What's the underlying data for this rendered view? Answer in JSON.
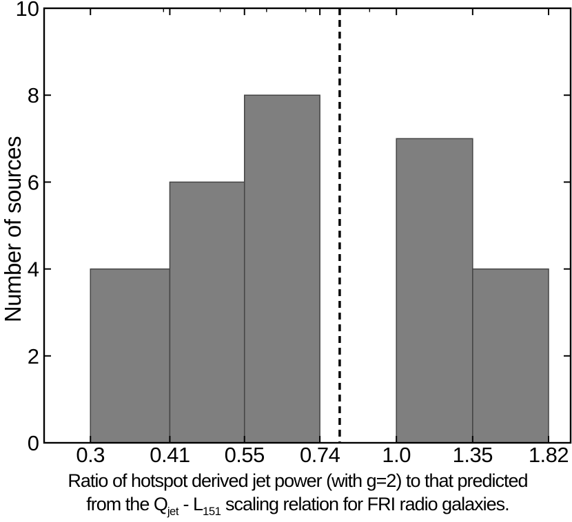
{
  "figure": {
    "background": "#ffffff",
    "caption_line1": "Ratio of hotspot derived jet power (with g=2) to that predicted",
    "caption_line2": [
      {
        "text": "from the Q"
      },
      {
        "text": "jet",
        "sub": true
      },
      {
        "text": " - L"
      },
      {
        "text": "151",
        "sub": true
      },
      {
        "text": " scaling relation for FRI radio galaxies."
      }
    ]
  },
  "chart_data": {
    "type": "bar",
    "subtype": "histogram",
    "title": "",
    "xlabel": "Ratio of hotspot derived jet power (with g=2) to that predicted from the Q_jet - L_151 scaling relation for FRI radio galaxies.",
    "ylabel": "Number of sources",
    "x_scale": "log",
    "y_scale": "linear",
    "xlim": [
      0.25,
      1.985
    ],
    "ylim": [
      0,
      10
    ],
    "bin_edges": [
      0.3,
      0.41,
      0.55,
      0.74,
      1.0,
      1.35,
      1.82
    ],
    "counts": [
      4,
      6,
      8,
      0,
      7,
      4
    ],
    "x_tick_labels": [
      "0.3",
      "0.41",
      "0.55",
      "0.74",
      "1.0",
      "1.35",
      "1.82"
    ],
    "x_minor_ticks": [
      0.4,
      0.5,
      0.6,
      0.7,
      0.8,
      0.9
    ],
    "y_ticks": [
      0,
      2,
      4,
      6,
      8,
      10
    ],
    "y_tick_labels": [
      "0",
      "2",
      "4",
      "6",
      "8",
      "10"
    ],
    "vline": {
      "x": 0.8,
      "style": "dashed",
      "color": "#000000"
    },
    "grid": false,
    "legend": null,
    "colors": {
      "bar_fill": "#7f7f7f",
      "bar_edge": "#444444",
      "axis": "#000000",
      "background": "#ffffff"
    }
  }
}
